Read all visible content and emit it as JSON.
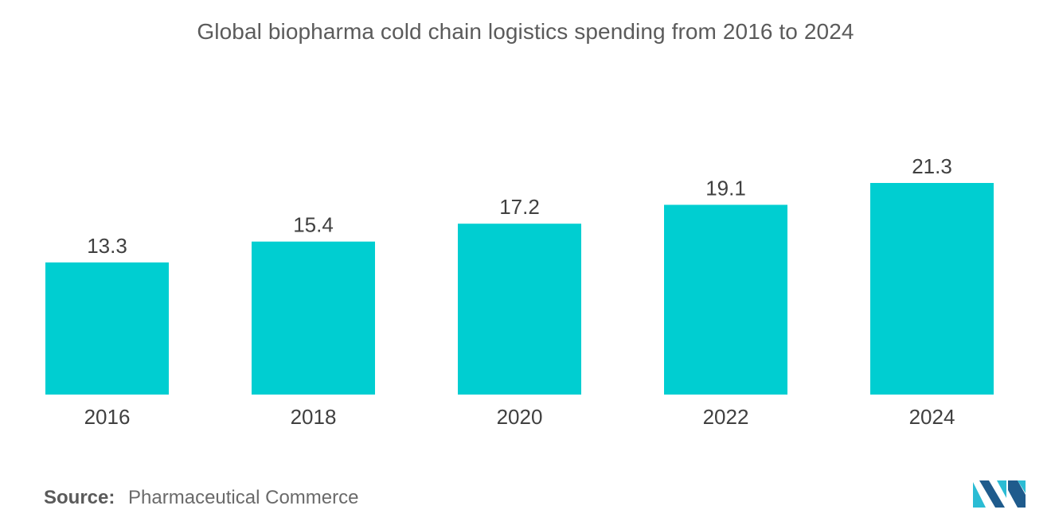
{
  "title": "Global biopharma cold chain logistics spending from 2016 to 2024",
  "source": {
    "label": "Source:",
    "text": "Pharmaceutical Commerce"
  },
  "colors": {
    "bar": "#00ced1",
    "text": "#404040",
    "logo_dark": "#1f5b8c",
    "logo_light": "#2bbcd4"
  },
  "chart_data": {
    "type": "bar",
    "categories": [
      "2016",
      "2018",
      "2020",
      "2022",
      "2024"
    ],
    "values": [
      13.3,
      15.4,
      17.2,
      19.1,
      21.3
    ],
    "title": "Global biopharma cold chain logistics spending from 2016 to 2024",
    "xlabel": "",
    "ylabel": "",
    "ylim": [
      0,
      21.3
    ],
    "grid": false,
    "legend": "none",
    "data_labels": [
      "13.3",
      "15.4",
      "17.2",
      "19.1",
      "21.3"
    ]
  }
}
